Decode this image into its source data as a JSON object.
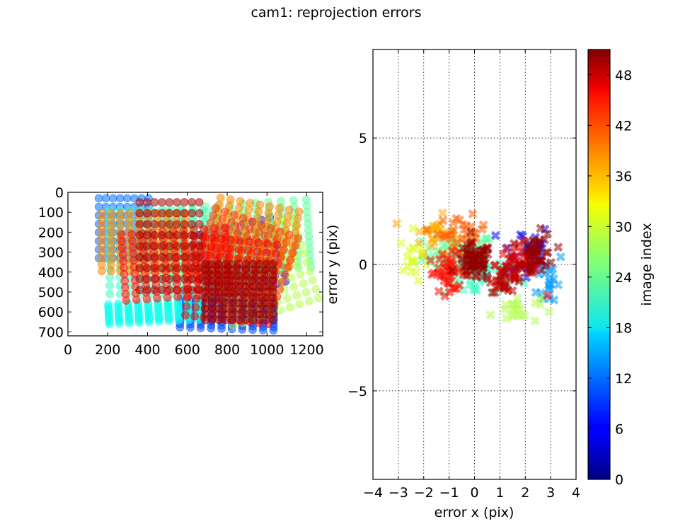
{
  "figure": {
    "title": "cam1: reprojection errors"
  },
  "chart_data": [
    {
      "type": "scatter",
      "panel": "left",
      "description_of_content": "",
      "xlabel": "",
      "ylabel": "",
      "xlim": [
        0,
        1280
      ],
      "ylim": [
        720,
        0
      ],
      "x_ticks": [
        0,
        200,
        400,
        600,
        800,
        1000,
        1200
      ],
      "x_tick_labels": [
        "0",
        "200",
        "400",
        "600",
        "800",
        "1000",
        "1200"
      ],
      "y_ticks": [
        0,
        100,
        200,
        300,
        400,
        500,
        600,
        700
      ],
      "y_tick_labels": [
        "0",
        "100",
        "200",
        "300",
        "400",
        "500",
        "600",
        "700"
      ],
      "colormap": "jet",
      "color_range": [
        0,
        51
      ],
      "grids": [
        {
          "cx": 880,
          "cy": 330,
          "w": 360,
          "h": 330,
          "angle": -14,
          "c": 8,
          "n": 9
        },
        {
          "cx": 800,
          "cy": 610,
          "w": 470,
          "h": 150,
          "angle": 2,
          "c": 10,
          "n": 10
        },
        {
          "cx": 430,
          "cy": 600,
          "w": 450,
          "h": 100,
          "angle": -3,
          "c": 20,
          "n": 10
        },
        {
          "cx": 280,
          "cy": 180,
          "w": 250,
          "h": 300,
          "angle": 0,
          "c": 12,
          "n": 8
        },
        {
          "cx": 860,
          "cy": 230,
          "w": 700,
          "h": 340,
          "angle": -4,
          "c": 24,
          "n": 12
        },
        {
          "cx": 470,
          "cy": 300,
          "w": 520,
          "h": 420,
          "angle": 0,
          "c": 22,
          "n": 11
        },
        {
          "cx": 980,
          "cy": 400,
          "w": 450,
          "h": 420,
          "angle": -18,
          "c": 28,
          "n": 10
        },
        {
          "cx": 940,
          "cy": 200,
          "w": 400,
          "h": 280,
          "angle": 10,
          "c": 38,
          "n": 9
        },
        {
          "cx": 380,
          "cy": 250,
          "w": 420,
          "h": 290,
          "angle": 0,
          "c": 38,
          "n": 10
        },
        {
          "cx": 890,
          "cy": 320,
          "w": 440,
          "h": 350,
          "angle": 20,
          "c": 42,
          "n": 10
        },
        {
          "cx": 540,
          "cy": 360,
          "w": 520,
          "h": 330,
          "angle": -4,
          "c": 44,
          "n": 11
        },
        {
          "cx": 820,
          "cy": 440,
          "w": 420,
          "h": 400,
          "angle": 6,
          "c": 45,
          "n": 10
        },
        {
          "cx": 510,
          "cy": 270,
          "w": 300,
          "h": 440,
          "angle": 0,
          "c": 49,
          "n": 9
        },
        {
          "cx": 860,
          "cy": 500,
          "w": 340,
          "h": 280,
          "angle": 0,
          "c": 50,
          "n": 11
        }
      ]
    },
    {
      "type": "scatter",
      "panel": "right",
      "xlabel": "error x (pix)",
      "ylabel": "error y (pix)",
      "xlim": [
        -4,
        4
      ],
      "ylim": [
        -8.5,
        8.5
      ],
      "grid": true,
      "x_ticks": [
        -4,
        -3,
        -2,
        -1,
        0,
        1,
        2,
        3,
        4
      ],
      "x_tick_labels": [
        "−4",
        "−3",
        "−2",
        "−1",
        "0",
        "1",
        "2",
        "3",
        "4"
      ],
      "y_ticks": [
        -5,
        0,
        5
      ],
      "y_tick_labels": [
        "−5",
        "0",
        "5"
      ],
      "marker": "x",
      "colormap": "jet",
      "color_range": [
        0,
        51
      ],
      "clusters": [
        {
          "cx": -0.6,
          "cy": 0.4,
          "sx": 1.2,
          "sy": 0.7,
          "c": 24,
          "n": 60
        },
        {
          "cx": 0.3,
          "cy": -0.5,
          "sx": 1.3,
          "sy": 0.7,
          "c": 22,
          "n": 55
        },
        {
          "cx": 2.0,
          "cy": 0.5,
          "sx": 0.85,
          "sy": 1.0,
          "c": 6,
          "n": 35
        },
        {
          "cx": 3.0,
          "cy": -0.6,
          "sx": 0.45,
          "sy": 1.0,
          "c": 14,
          "n": 20
        },
        {
          "cx": -1.6,
          "cy": 1.2,
          "sx": 0.7,
          "sy": 0.6,
          "c": 36,
          "n": 28
        },
        {
          "cx": -2.4,
          "cy": 0.2,
          "sx": 0.45,
          "sy": 0.9,
          "c": 30,
          "n": 18
        },
        {
          "cx": 1.6,
          "cy": -1.8,
          "sx": 0.8,
          "sy": 0.45,
          "c": 28,
          "n": 22
        },
        {
          "cx": -0.5,
          "cy": 1.3,
          "sx": 0.8,
          "sy": 0.5,
          "c": 40,
          "n": 30
        },
        {
          "cx": -1.0,
          "cy": -0.3,
          "sx": 0.7,
          "sy": 0.6,
          "c": 44,
          "n": 45
        },
        {
          "cx": 1.8,
          "cy": 0.0,
          "sx": 0.8,
          "sy": 0.8,
          "c": 46,
          "n": 50
        },
        {
          "cx": 0.0,
          "cy": 0.1,
          "sx": 0.55,
          "sy": 0.6,
          "c": 50,
          "n": 70
        },
        {
          "cx": 2.5,
          "cy": 0.4,
          "sx": 0.55,
          "sy": 0.7,
          "c": 50,
          "n": 40
        },
        {
          "cx": 1.2,
          "cy": -0.5,
          "sx": 0.5,
          "sy": 0.5,
          "c": 48,
          "n": 30
        }
      ]
    }
  ],
  "colorbar": {
    "label": "image index",
    "range": [
      0,
      51
    ],
    "ticks": [
      0,
      6,
      12,
      18,
      24,
      30,
      36,
      42,
      48
    ],
    "tick_labels": [
      "0",
      "6",
      "12",
      "18",
      "24",
      "30",
      "36",
      "42",
      "48"
    ],
    "colormap": "jet"
  }
}
